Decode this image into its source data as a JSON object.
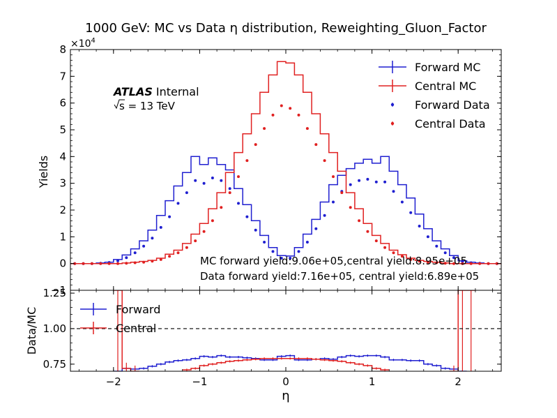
{
  "chart_data": [
    {
      "type": "line",
      "title": "1000 GeV: MC vs Data η distribution, Reweighting_Gluon_Factor",
      "xlabel": "",
      "ylabel": "Yields",
      "y_multiplier": "×10",
      "y_multiplier_exp": "4",
      "xlim": [
        -2.5,
        2.5
      ],
      "ylim": [
        -1,
        8
      ],
      "yticks": [
        -1,
        0,
        1,
        2,
        3,
        4,
        5,
        6,
        7,
        8
      ],
      "ytick_labels": [
        "−1",
        "0",
        "1",
        "2",
        "3",
        "4",
        "5",
        "6",
        "7",
        "8"
      ],
      "atlas_label": "ATLAS",
      "atlas_sub": "Internal",
      "energy_label": "s = 13 TeV",
      "legend_position": "top-right",
      "legend": [
        "Forward MC",
        "Central MC",
        "Forward Data",
        "Central Data"
      ],
      "bin_edges": [
        -2.5,
        -2.4,
        -2.3,
        -2.2,
        -2.1,
        -2.0,
        -1.9,
        -1.8,
        -1.7,
        -1.6,
        -1.5,
        -1.4,
        -1.3,
        -1.2,
        -1.1,
        -1.0,
        -0.9,
        -0.8,
        -0.7,
        -0.6,
        -0.5,
        -0.4,
        -0.3,
        -0.2,
        -0.1,
        0.0,
        0.1,
        0.2,
        0.3,
        0.4,
        0.5,
        0.6,
        0.7,
        0.8,
        0.9,
        1.0,
        1.1,
        1.2,
        1.3,
        1.4,
        1.5,
        1.6,
        1.7,
        1.8,
        1.9,
        2.0,
        2.1,
        2.2,
        2.3,
        2.4,
        2.5
      ],
      "series": [
        {
          "name": "Forward MC",
          "kind": "step",
          "color": "#1f1fd0",
          "values": [
            0,
            0,
            0,
            0.02,
            0.05,
            0.15,
            0.32,
            0.55,
            0.85,
            1.25,
            1.8,
            2.35,
            2.9,
            3.4,
            4.0,
            3.7,
            3.95,
            3.7,
            3.5,
            2.8,
            2.2,
            1.6,
            1.05,
            0.6,
            0.3,
            0.28,
            0.6,
            1.1,
            1.65,
            2.3,
            2.95,
            3.3,
            3.55,
            3.75,
            3.9,
            3.75,
            4.0,
            3.45,
            2.95,
            2.45,
            1.85,
            1.3,
            0.85,
            0.55,
            0.3,
            0.1,
            0.05,
            0.02,
            0,
            0
          ]
        },
        {
          "name": "Central MC",
          "kind": "step",
          "color": "#e02020",
          "values": [
            0,
            0,
            0,
            0,
            0,
            0,
            0.02,
            0.05,
            0.08,
            0.12,
            0.2,
            0.35,
            0.5,
            0.75,
            1.1,
            1.5,
            2.05,
            2.65,
            3.4,
            4.15,
            4.85,
            5.6,
            6.4,
            7.05,
            7.55,
            7.5,
            7.05,
            6.4,
            5.6,
            4.85,
            4.15,
            3.45,
            2.65,
            2.05,
            1.5,
            1.05,
            0.75,
            0.5,
            0.33,
            0.2,
            0.12,
            0.08,
            0.05,
            0.02,
            0,
            0,
            0,
            0,
            0,
            0
          ]
        },
        {
          "name": "Forward Data",
          "kind": "points",
          "color": "#1f1fd0",
          "values": [
            0,
            0,
            0,
            0.01,
            0.04,
            0.1,
            0.22,
            0.4,
            0.65,
            0.95,
            1.35,
            1.75,
            2.25,
            2.65,
            3.1,
            3.0,
            3.2,
            3.1,
            2.8,
            2.25,
            1.75,
            1.25,
            0.8,
            0.45,
            0.2,
            0.2,
            0.45,
            0.8,
            1.3,
            1.8,
            2.3,
            2.7,
            2.95,
            3.1,
            3.15,
            3.05,
            3.05,
            2.7,
            2.3,
            1.9,
            1.4,
            1.0,
            0.65,
            0.4,
            0.22,
            0.08,
            0.03,
            0.01,
            0,
            0
          ]
        },
        {
          "name": "Central Data",
          "kind": "points",
          "color": "#e02020",
          "values": [
            0,
            0,
            0,
            0,
            0,
            0,
            0.01,
            0.03,
            0.05,
            0.09,
            0.15,
            0.27,
            0.4,
            0.6,
            0.85,
            1.2,
            1.6,
            2.1,
            2.65,
            3.25,
            3.85,
            4.45,
            5.05,
            5.55,
            5.9,
            5.8,
            5.55,
            5.05,
            4.45,
            3.85,
            3.25,
            2.65,
            2.1,
            1.6,
            1.2,
            0.85,
            0.6,
            0.4,
            0.27,
            0.15,
            0.09,
            0.05,
            0.03,
            0.01,
            0,
            0,
            0,
            0,
            0,
            0
          ]
        }
      ],
      "annotations": [
        "MC forward yield:9.06e+05,central yield:8.95e+05",
        "Data forward yield:7.16e+05, central yield:6.89e+05"
      ]
    },
    {
      "type": "line",
      "title": "",
      "xlabel": "η",
      "ylabel": "Data/MC",
      "xlim": [
        -2.5,
        2.5
      ],
      "ylim": [
        0.7,
        1.27
      ],
      "xticks": [
        -2,
        -1,
        0,
        1,
        2
      ],
      "xtick_labels": [
        "−2",
        "−1",
        "0",
        "1",
        "2"
      ],
      "yticks": [
        0.75,
        1.0,
        1.25
      ],
      "ytick_labels": [
        "0.75",
        "1.00",
        "1.25"
      ],
      "reference_line": 1.0,
      "legend_position": "top-left",
      "legend": [
        "Forward",
        "Central"
      ],
      "series": [
        {
          "name": "Forward",
          "kind": "step",
          "color": "#1f1fd0",
          "values": [
            null,
            null,
            null,
            null,
            null,
            0.7,
            0.72,
            0.715,
            0.72,
            0.735,
            0.75,
            0.765,
            0.775,
            0.78,
            0.79,
            0.805,
            0.8,
            0.81,
            0.8,
            0.8,
            0.795,
            0.79,
            0.78,
            0.78,
            0.805,
            0.81,
            0.78,
            0.78,
            0.785,
            0.79,
            0.785,
            0.8,
            0.81,
            0.805,
            0.81,
            0.81,
            0.8,
            0.78,
            0.78,
            0.775,
            0.775,
            0.75,
            0.74,
            0.72,
            0.715,
            0.7,
            null,
            null,
            null,
            null
          ]
        },
        {
          "name": "Central",
          "kind": "step",
          "color": "#e02020",
          "values": [
            null,
            null,
            null,
            null,
            null,
            1.27,
            0.72,
            0.7,
            null,
            null,
            null,
            null,
            null,
            0.71,
            0.72,
            0.74,
            0.75,
            0.76,
            0.77,
            0.775,
            0.78,
            0.785,
            0.79,
            0.79,
            0.79,
            0.79,
            0.79,
            0.79,
            0.785,
            0.78,
            0.775,
            0.77,
            0.76,
            0.75,
            0.74,
            0.72,
            0.71,
            null,
            null,
            null,
            null,
            null,
            null,
            null,
            0.7,
            1.27,
            1.27,
            null,
            null,
            null
          ]
        }
      ]
    }
  ]
}
